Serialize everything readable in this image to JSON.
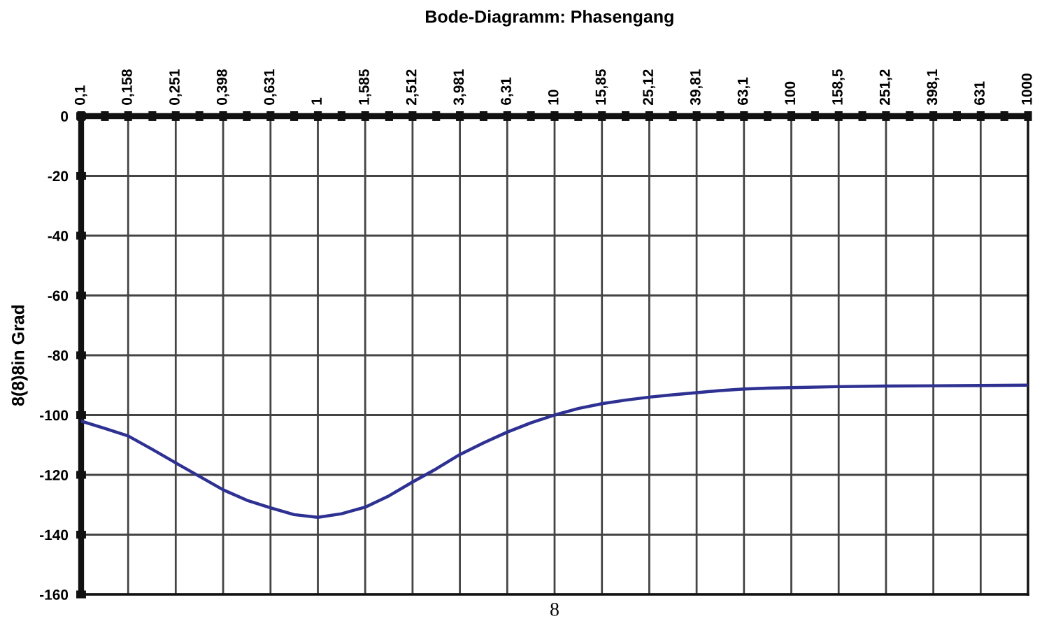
{
  "chart_data": {
    "type": "line",
    "title": "Bode-Diagramm: Phasengang",
    "xlabel": "8",
    "ylabel": "8(8)8in Grad",
    "x": [
      0.1,
      0.126,
      0.158,
      0.2,
      0.251,
      0.316,
      0.398,
      0.501,
      0.631,
      0.794,
      1,
      1.259,
      1.585,
      2,
      2.512,
      3.162,
      3.981,
      5.012,
      6.31,
      7.943,
      10,
      12.59,
      15.85,
      19.95,
      25.12,
      31.62,
      39.81,
      50.12,
      63.1,
      79.43,
      100,
      158.5,
      251.2,
      398.1,
      631,
      1000
    ],
    "values": [
      -102,
      -104.5,
      -107,
      -111.5,
      -116,
      -120.5,
      -125,
      -128.5,
      -131,
      -133.3,
      -134.2,
      -133,
      -130.8,
      -127,
      -122.4,
      -118,
      -113.2,
      -109.3,
      -105.7,
      -102.6,
      -100,
      -97.8,
      -96.2,
      -95,
      -94,
      -93.2,
      -92.5,
      -91.8,
      -91.3,
      -91,
      -90.8,
      -90.5,
      -90.3,
      -90.2,
      -90.1,
      -90
    ],
    "color": "#2e3192",
    "log": "x",
    "grid": true,
    "xlim": [
      0.1,
      1000
    ],
    "ylim": [
      -160,
      0
    ],
    "xticks": [
      {
        "value": 0.1,
        "label": "0,1"
      },
      {
        "value": 0.126,
        "label": null
      },
      {
        "value": 0.158,
        "label": "0,158"
      },
      {
        "value": 0.2,
        "label": null
      },
      {
        "value": 0.251,
        "label": "0,251"
      },
      {
        "value": 0.316,
        "label": null
      },
      {
        "value": 0.398,
        "label": "0,398"
      },
      {
        "value": 0.501,
        "label": null
      },
      {
        "value": 0.631,
        "label": "0,631"
      },
      {
        "value": 0.794,
        "label": null
      },
      1,
      {
        "value": 1.259,
        "label": null
      },
      {
        "value": 1.585,
        "label": "1,585"
      },
      {
        "value": 2,
        "label": null
      },
      {
        "value": 2.512,
        "label": "2,512"
      },
      {
        "value": 3.162,
        "label": null
      },
      {
        "value": 3.981,
        "label": "3,981"
      },
      {
        "value": 5.012,
        "label": null
      },
      {
        "value": 6.31,
        "label": "6,31"
      },
      {
        "value": 7.943,
        "label": null
      },
      10,
      {
        "value": 12.59,
        "label": null
      },
      {
        "value": 15.85,
        "label": "15,85"
      },
      {
        "value": 19.95,
        "label": null
      },
      {
        "value": 25.12,
        "label": "25,12"
      },
      {
        "value": 31.62,
        "label": null
      },
      {
        "value": 39.81,
        "label": "39,81"
      },
      {
        "value": 50.12,
        "label": null
      },
      {
        "value": 63.1,
        "label": "63,1"
      },
      {
        "value": 79.43,
        "label": null
      },
      100,
      {
        "value": 125.9,
        "label": null
      },
      {
        "value": 158.5,
        "label": "158,5"
      },
      {
        "value": 199.5,
        "label": null
      },
      {
        "value": 251.2,
        "label": "251,2"
      },
      {
        "value": 316.2,
        "label": null
      },
      {
        "value": 398.1,
        "label": "398,1"
      },
      {
        "value": 501.2,
        "label": null
      },
      {
        "value": 631,
        "label": "631"
      },
      {
        "value": 794.3,
        "label": null
      },
      1000
    ],
    "yticks": [
      0,
      -20,
      -40,
      -60,
      -80,
      -100,
      -120,
      -140,
      -160
    ]
  }
}
